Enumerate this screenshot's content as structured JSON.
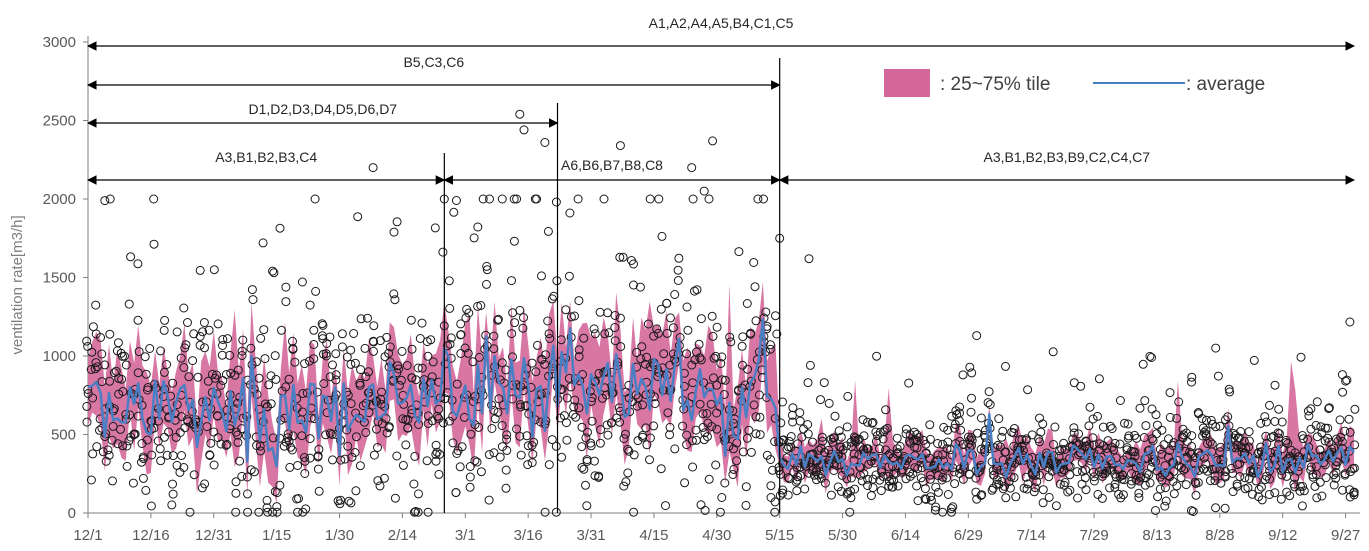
{
  "chart_data": {
    "type": "scatter",
    "title": "",
    "ylabel": "ventilation rate[m3/h]",
    "xlabel": "",
    "ylim": [
      0,
      3000
    ],
    "yticks": [
      0,
      500,
      1000,
      1500,
      2000,
      2500,
      3000
    ],
    "ytick_labels": [
      "0",
      "500",
      "1000",
      "1500",
      "2000",
      "2500",
      "3000"
    ],
    "x_start": "12/1",
    "x_end": "9/28",
    "day_count": 302,
    "x_tick_labels": [
      "12/1",
      "12/16",
      "12/31",
      "1/15",
      "1/30",
      "2/14",
      "3/1",
      "3/16",
      "3/31",
      "4/15",
      "4/30",
      "5/15",
      "5/30",
      "6/14",
      "6/29",
      "7/14",
      "7/29",
      "8/13",
      "8/28",
      "9/12",
      "9/27"
    ],
    "x_tick_days": [
      0,
      15,
      30,
      45,
      60,
      75,
      90,
      105,
      120,
      135,
      150,
      165,
      180,
      195,
      210,
      225,
      240,
      255,
      270,
      285,
      300
    ],
    "legend": {
      "band_label": ": 25~75% tile",
      "line_label": ": average",
      "band_color": "#d4679a",
      "line_color": "#4a7fc4"
    },
    "period_spans": [
      {
        "label": "A1,A2,A4,A5,B4,C1,C5",
        "start_day": 0,
        "end_day": 302
      },
      {
        "label": "B5,C3,C6",
        "start_day": 0,
        "end_day": 165
      },
      {
        "label": "D1,D2,D3,D4,D5,D6,D7",
        "start_day": 0,
        "end_day": 112
      },
      {
        "label": "A3,B1,B2,B3,C4",
        "start_day": 0,
        "end_day": 85
      },
      {
        "label": "A6,B6,B7,B8,C8",
        "start_day": 85,
        "end_day": 165
      },
      {
        "label": "A3,B1,B2,B3,B9,C2,C4,C7",
        "start_day": 165,
        "end_day": 302
      }
    ],
    "divider_days": [
      85,
      112,
      165
    ],
    "series": [
      {
        "name": "average",
        "period_levels": [
          {
            "start_day": 0,
            "end_day": 85,
            "value": 650
          },
          {
            "start_day": 85,
            "end_day": 165,
            "value": 800
          },
          {
            "start_day": 165,
            "end_day": 302,
            "value": 330
          }
        ]
      },
      {
        "name": "25~75% tile",
        "period_ranges": [
          {
            "start_day": 0,
            "end_day": 85,
            "low": 350,
            "high": 900
          },
          {
            "start_day": 85,
            "end_day": 165,
            "low": 500,
            "high": 1100
          },
          {
            "start_day": 165,
            "end_day": 302,
            "low": 220,
            "high": 450
          }
        ]
      }
    ],
    "notable_points": [
      {
        "day": 4,
        "value": 1990
      },
      {
        "day": 68,
        "value": 2200
      },
      {
        "day": 103,
        "value": 2540
      },
      {
        "day": 104,
        "value": 2440
      },
      {
        "day": 109,
        "value": 2360
      },
      {
        "day": 127,
        "value": 2340
      },
      {
        "day": 149,
        "value": 2370
      },
      {
        "day": 144,
        "value": 2200
      },
      {
        "day": 147,
        "value": 2050
      },
      {
        "day": 165,
        "value": 1750
      },
      {
        "day": 172,
        "value": 1620
      },
      {
        "day": 212,
        "value": 1130
      },
      {
        "day": 269,
        "value": 1050
      },
      {
        "day": 300,
        "value": 840
      }
    ]
  }
}
